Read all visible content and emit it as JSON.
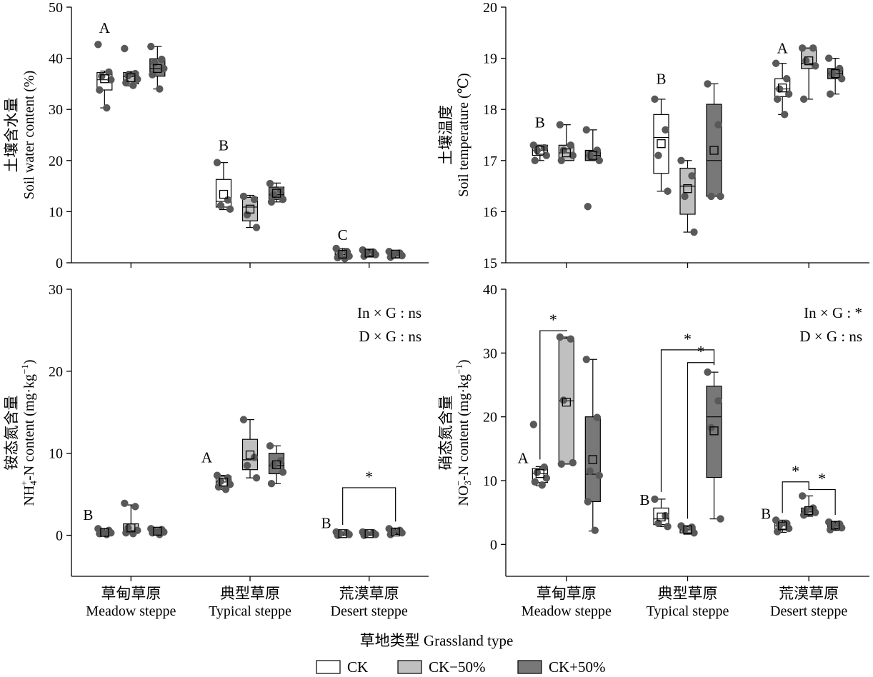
{
  "figure": {
    "xlabel": "草地类型 Grassland type",
    "legend": [
      {
        "label": "CK",
        "color": "#ffffff"
      },
      {
        "label": "CK−50%",
        "color": "#c0c0c0"
      },
      {
        "label": "CK+50%",
        "color": "#787878"
      }
    ],
    "categories_cn": [
      "草甸草原",
      "典型草原",
      "荒漠草原"
    ],
    "categories_en": [
      "Meadow steppe",
      "Typical steppe",
      "Desert steppe"
    ]
  },
  "chart_data": [
    {
      "type": "box",
      "ylabel_cn": "土壤含水量",
      "ylabel_en": "Soil water content (%)",
      "ylim": [
        0,
        50
      ],
      "yticks": [
        0,
        10,
        20,
        30,
        40,
        50
      ],
      "letters": [
        "A",
        "B",
        "C"
      ],
      "letter_y": [
        45,
        22,
        4.5
      ],
      "stats": [],
      "boxes": [
        [
          {
            "q1": 33.8,
            "median": 35.8,
            "q3": 37.2,
            "mean": 36.0,
            "wlow": 30.3,
            "whigh": 37.5,
            "points": [
              42.7,
              37.3,
              36.5,
              35.8,
              33.8,
              30.3
            ]
          },
          {
            "q1": 35.0,
            "median": 36.4,
            "q3": 37.2,
            "mean": 36.2,
            "wlow": 34.6,
            "whigh": 37.4,
            "points": [
              41.9,
              37.0,
              36.6,
              35.9,
              35.2,
              34.7
            ]
          },
          {
            "q1": 36.5,
            "median": 38.0,
            "q3": 39.9,
            "mean": 38.0,
            "wlow": 34.0,
            "whigh": 42.3,
            "points": [
              42.3,
              39.8,
              39.1,
              38.0,
              36.8,
              34.0
            ]
          }
        ],
        [
          {
            "q1": 10.9,
            "median": 12.0,
            "q3": 16.3,
            "mean": 13.4,
            "wlow": 10.4,
            "whigh": 19.6,
            "points": [
              19.6,
              12.3,
              11.2,
              10.5
            ]
          },
          {
            "q1": 8.2,
            "median": 10.9,
            "q3": 12.8,
            "mean": 10.5,
            "wlow": 6.9,
            "whigh": 13.2,
            "points": [
              13.0,
              12.4,
              9.4,
              6.9
            ]
          },
          {
            "q1": 12.4,
            "median": 13.3,
            "q3": 14.8,
            "mean": 13.6,
            "wlow": 11.9,
            "whigh": 15.6,
            "points": [
              15.5,
              14.2,
              13.3,
              12.4,
              11.9
            ]
          }
        ],
        [
          {
            "q1": 1.0,
            "median": 1.6,
            "q3": 2.3,
            "mean": 1.7,
            "wlow": 0.8,
            "whigh": 2.8,
            "points": [
              2.8,
              2.2,
              1.8,
              1.3,
              1.0,
              0.8
            ]
          },
          {
            "q1": 1.4,
            "median": 1.9,
            "q3": 2.3,
            "mean": 1.9,
            "wlow": 1.2,
            "whigh": 2.5,
            "points": [
              2.5,
              2.1,
              1.9,
              1.6,
              1.3
            ]
          },
          {
            "q1": 1.3,
            "median": 1.7,
            "q3": 2.0,
            "mean": 1.7,
            "wlow": 1.0,
            "whigh": 2.2,
            "points": [
              2.2,
              1.9,
              1.7,
              1.4,
              1.1
            ]
          }
        ]
      ],
      "brackets": []
    },
    {
      "type": "box",
      "ylabel_cn": "土壤温度",
      "ylabel_en": "Soil temperature (℃)",
      "ylim": [
        15,
        20
      ],
      "yticks": [
        15,
        16,
        17,
        18,
        19,
        20
      ],
      "letters": [
        "B",
        "B",
        "A"
      ],
      "letter_y": [
        17.65,
        18.5,
        19.1
      ],
      "stats": [],
      "boxes": [
        [
          {
            "q1": 17.1,
            "median": 17.2,
            "q3": 17.3,
            "mean": 17.2,
            "wlow": 17.0,
            "whigh": 17.3,
            "points": [
              17.3,
              17.25,
              17.2,
              17.1,
              17.0
            ]
          },
          {
            "q1": 17.0,
            "median": 17.15,
            "q3": 17.3,
            "mean": 17.15,
            "wlow": 17.0,
            "whigh": 17.7,
            "points": [
              17.7,
              17.3,
              17.2,
              17.1,
              17.0
            ]
          },
          {
            "q1": 17.0,
            "median": 17.1,
            "q3": 17.2,
            "mean": 17.1,
            "wlow": 17.0,
            "whigh": 17.6,
            "points": [
              17.6,
              17.2,
              17.1,
              17.0,
              16.1
            ]
          }
        ],
        [
          {
            "q1": 16.75,
            "median": 17.45,
            "q3": 17.9,
            "mean": 17.33,
            "wlow": 16.4,
            "whigh": 18.2,
            "points": [
              18.2,
              17.6,
              17.1,
              16.4
            ]
          },
          {
            "q1": 15.95,
            "median": 16.5,
            "q3": 16.85,
            "mean": 16.45,
            "wlow": 15.6,
            "whigh": 17.0,
            "points": [
              17.0,
              16.7,
              16.3,
              15.6
            ]
          },
          {
            "q1": 16.3,
            "median": 17.0,
            "q3": 18.1,
            "mean": 17.2,
            "wlow": 16.3,
            "whigh": 18.5,
            "points": [
              18.5,
              17.7,
              16.3,
              16.3
            ]
          }
        ],
        [
          {
            "q1": 18.25,
            "median": 18.4,
            "q3": 18.6,
            "mean": 18.42,
            "wlow": 17.9,
            "whigh": 18.9,
            "points": [
              18.9,
              18.6,
              18.4,
              18.3,
              18.2,
              17.9
            ]
          },
          {
            "q1": 18.8,
            "median": 18.9,
            "q3": 19.2,
            "mean": 18.95,
            "wlow": 18.2,
            "whigh": 19.2,
            "points": [
              19.2,
              19.2,
              18.95,
              18.85,
              18.2
            ]
          },
          {
            "q1": 18.6,
            "median": 18.7,
            "q3": 18.8,
            "mean": 18.7,
            "wlow": 18.3,
            "whigh": 19.0,
            "points": [
              19.0,
              18.8,
              18.7,
              18.6,
              18.3
            ]
          }
        ]
      ],
      "brackets": []
    },
    {
      "type": "box",
      "ylabel_cn": "铵态氮含量",
      "ylabel_en_parts": [
        "NH",
        "4",
        "+",
        "-N content (mg·kg",
        "−1",
        ")"
      ],
      "ylim": [
        -5,
        30
      ],
      "yticks": [
        0,
        10,
        20,
        30
      ],
      "letters": [
        "B",
        "A",
        "B"
      ],
      "letter_y": [
        2.5,
        9.5,
        1.5
      ],
      "stats": [
        "In × G : ns",
        "D × G : ns"
      ],
      "boxes": [
        [
          {
            "q1": 0.2,
            "median": 0.3,
            "q3": 0.5,
            "mean": 0.35,
            "wlow": 0.1,
            "whigh": 0.8,
            "points": [
              0.8,
              0.6,
              0.4,
              0.3,
              0.2,
              0.1
            ]
          },
          {
            "q1": 0.3,
            "median": 0.6,
            "q3": 1.4,
            "mean": 0.9,
            "wlow": 0.2,
            "whigh": 3.7,
            "points": [
              3.9,
              3.5,
              0.9,
              0.6,
              0.3,
              0.2
            ]
          },
          {
            "q1": 0.3,
            "median": 0.5,
            "q3": 0.7,
            "mean": 0.5,
            "wlow": 0.1,
            "whigh": 0.8,
            "points": [
              0.8,
              0.7,
              0.5,
              0.4,
              0.3,
              0.1
            ]
          }
        ],
        [
          {
            "q1": 5.9,
            "median": 6.5,
            "q3": 7.2,
            "mean": 6.5,
            "wlow": 5.6,
            "whigh": 7.3,
            "points": [
              7.3,
              7.0,
              6.6,
              6.2,
              5.9,
              5.6
            ]
          },
          {
            "q1": 8.0,
            "median": 9.2,
            "q3": 11.7,
            "mean": 9.8,
            "wlow": 7.0,
            "whigh": 14.1,
            "points": [
              14.1,
              9.5,
              8.5,
              7.0
            ]
          },
          {
            "q1": 7.5,
            "median": 8.5,
            "q3": 10.0,
            "mean": 8.6,
            "wlow": 6.3,
            "whigh": 10.9,
            "points": [
              10.9,
              9.1,
              8.6,
              7.7,
              6.3
            ]
          }
        ],
        [
          {
            "q1": 0.1,
            "median": 0.2,
            "q3": 0.3,
            "mean": 0.2,
            "wlow": 0.0,
            "whigh": 0.4,
            "points": [
              0.4,
              0.3,
              0.2,
              0.1,
              0.0
            ]
          },
          {
            "q1": 0.1,
            "median": 0.2,
            "q3": 0.3,
            "mean": 0.2,
            "wlow": 0.0,
            "whigh": 0.4,
            "points": [
              0.4,
              0.3,
              0.2,
              0.1,
              0.0
            ]
          },
          {
            "q1": 0.2,
            "median": 0.35,
            "q3": 0.6,
            "mean": 0.4,
            "wlow": 0.1,
            "whigh": 0.8,
            "points": [
              0.8,
              0.6,
              0.4,
              0.3,
              0.1
            ]
          }
        ]
      ],
      "brackets": [
        {
          "group": 2,
          "from": 0,
          "to": 2,
          "y": 5.8,
          "label": "*"
        }
      ]
    },
    {
      "type": "box",
      "ylabel_cn": "硝态氮含量",
      "ylabel_en_parts": [
        "NO",
        "3",
        "−",
        "-N content (mg·kg",
        "−1",
        ")"
      ],
      "ylim": [
        -5,
        40
      ],
      "yticks": [
        0,
        10,
        20,
        30,
        40
      ],
      "letters": [
        "A",
        "B",
        "B"
      ],
      "letter_y": [
        13.5,
        7.0,
        4.8
      ],
      "stats": [
        "In × G : *",
        "D × G : ns"
      ],
      "boxes": [
        [
          {
            "q1": 9.7,
            "median": 11.1,
            "q3": 11.9,
            "mean": 11.1,
            "wlow": 9.2,
            "whigh": 12.2,
            "points": [
              18.8,
              12.1,
              11.3,
              10.4,
              9.8,
              9.3
            ]
          },
          {
            "q1": 12.6,
            "median": 22.5,
            "q3": 32.3,
            "mean": 22.3,
            "wlow": 12.6,
            "whigh": 32.5,
            "points": [
              32.5,
              32.2,
              22.6,
              12.8,
              12.6
            ]
          },
          {
            "q1": 6.7,
            "median": 11.0,
            "q3": 20.0,
            "mean": 13.3,
            "wlow": 2.1,
            "whigh": 29.0,
            "points": [
              29.0,
              19.9,
              11.5,
              10.8,
              6.7,
              2.2
            ]
          }
        ],
        [
          {
            "q1": 3.1,
            "median": 4.0,
            "q3": 5.7,
            "mean": 4.3,
            "wlow": 2.8,
            "whigh": 7.1,
            "points": [
              7.1,
              4.5,
              3.3,
              2.8
            ]
          },
          {
            "q1": 1.8,
            "median": 2.3,
            "q3": 2.8,
            "mean": 2.3,
            "wlow": 1.6,
            "whigh": 2.9,
            "points": [
              2.9,
              2.7,
              2.3,
              1.8
            ]
          },
          {
            "q1": 10.5,
            "median": 20.0,
            "q3": 24.8,
            "mean": 17.8,
            "wlow": 4.0,
            "whigh": 27.0,
            "points": [
              27.0,
              22.5,
              18.3,
              4.0
            ]
          }
        ],
        [
          {
            "q1": 2.4,
            "median": 2.9,
            "q3": 3.4,
            "mean": 2.9,
            "wlow": 1.9,
            "whigh": 3.8,
            "points": [
              3.8,
              3.3,
              3.0,
              2.5,
              2.0
            ]
          },
          {
            "q1": 4.6,
            "median": 5.1,
            "q3": 5.7,
            "mean": 5.3,
            "wlow": 4.4,
            "whigh": 7.6,
            "points": [
              7.6,
              5.7,
              5.3,
              5.0,
              4.6
            ]
          },
          {
            "q1": 2.5,
            "median": 3.0,
            "q3": 3.3,
            "mean": 3.0,
            "wlow": 2.2,
            "whigh": 3.5,
            "points": [
              3.5,
              3.2,
              3.0,
              2.6,
              2.3
            ]
          }
        ]
      ],
      "brackets": [
        {
          "group": 0,
          "from": 0,
          "to": 1,
          "y": 33.5,
          "label": "*"
        },
        {
          "group": 1,
          "from": 0,
          "to": 2,
          "y": 30.5,
          "label": "*"
        },
        {
          "group": 1,
          "from": 1,
          "to": 2,
          "y": 28.5,
          "label": "*"
        },
        {
          "group": 2,
          "from": 0,
          "to": 1,
          "y": 9.8,
          "label": "*"
        },
        {
          "group": 2,
          "from": 1,
          "to": 2,
          "y": 8.6,
          "label": "*"
        }
      ]
    }
  ]
}
